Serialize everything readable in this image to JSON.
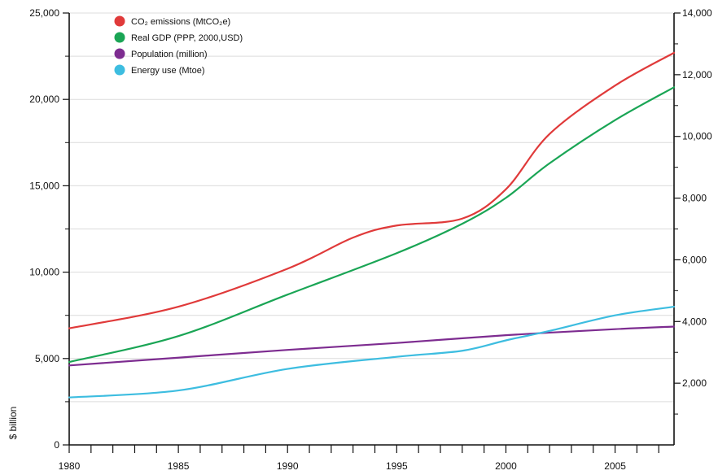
{
  "chart_data": {
    "type": "line",
    "xlim": [
      1980,
      2007.7
    ],
    "x_ticks_major": [
      1980,
      1985,
      1990,
      1995,
      2000,
      2005
    ],
    "x_tick_labels": [
      "1980",
      "1985",
      "1990",
      "1995",
      "2000",
      "2005"
    ],
    "left_axis": {
      "label": "$ billion",
      "ylim": [
        0,
        25000
      ],
      "ticks": [
        0,
        5000,
        10000,
        15000,
        20000,
        25000
      ],
      "tick_labels": [
        "0",
        "5,000",
        "10,000",
        "15,000",
        "20,000",
        "25,000"
      ]
    },
    "right_axis": {
      "label": "",
      "ylim": [
        0,
        14000
      ],
      "ticks": [
        2000,
        4000,
        6000,
        8000,
        10000,
        12000,
        14000
      ],
      "tick_labels": [
        "2,000",
        "4,000",
        "6,000",
        "8,000",
        "10,000",
        "12,000",
        "14,000"
      ]
    },
    "grid": "horizontal",
    "legend_position": "top-left",
    "series": [
      {
        "name": "CO₂ emissions (MtCO₂e)",
        "color": "#e03a3a",
        "axis": "left",
        "points": [
          [
            1980,
            6750
          ],
          [
            1985,
            8000
          ],
          [
            1990,
            10200
          ],
          [
            1993,
            12000
          ],
          [
            1995,
            12700
          ],
          [
            1998,
            13100
          ],
          [
            2000,
            14800
          ],
          [
            2002,
            18000
          ],
          [
            2005,
            20800
          ],
          [
            2007.7,
            22700
          ]
        ]
      },
      {
        "name": "Real GDP (PPP, 2000,USD)",
        "color": "#1aa555",
        "axis": "left",
        "points": [
          [
            1980,
            4800
          ],
          [
            1985,
            6300
          ],
          [
            1990,
            8700
          ],
          [
            1995,
            11100
          ],
          [
            1998,
            12800
          ],
          [
            2000,
            14300
          ],
          [
            2002,
            16300
          ],
          [
            2005,
            18800
          ],
          [
            2007.7,
            20700
          ]
        ]
      },
      {
        "name": "Population (million)",
        "color": "#7d2c90",
        "axis": "left",
        "points": [
          [
            1980,
            4600
          ],
          [
            1985,
            5050
          ],
          [
            1990,
            5500
          ],
          [
            1995,
            5900
          ],
          [
            2000,
            6350
          ],
          [
            2005,
            6700
          ],
          [
            2007.7,
            6850
          ]
        ]
      },
      {
        "name": "Energy use (Mtoe)",
        "color": "#3dbde0",
        "axis": "left",
        "points": [
          [
            1980,
            2750
          ],
          [
            1985,
            3150
          ],
          [
            1990,
            4400
          ],
          [
            1995,
            5100
          ],
          [
            1998,
            5450
          ],
          [
            2000,
            6050
          ],
          [
            2002,
            6600
          ],
          [
            2005,
            7500
          ],
          [
            2007.7,
            8000
          ]
        ]
      }
    ]
  }
}
